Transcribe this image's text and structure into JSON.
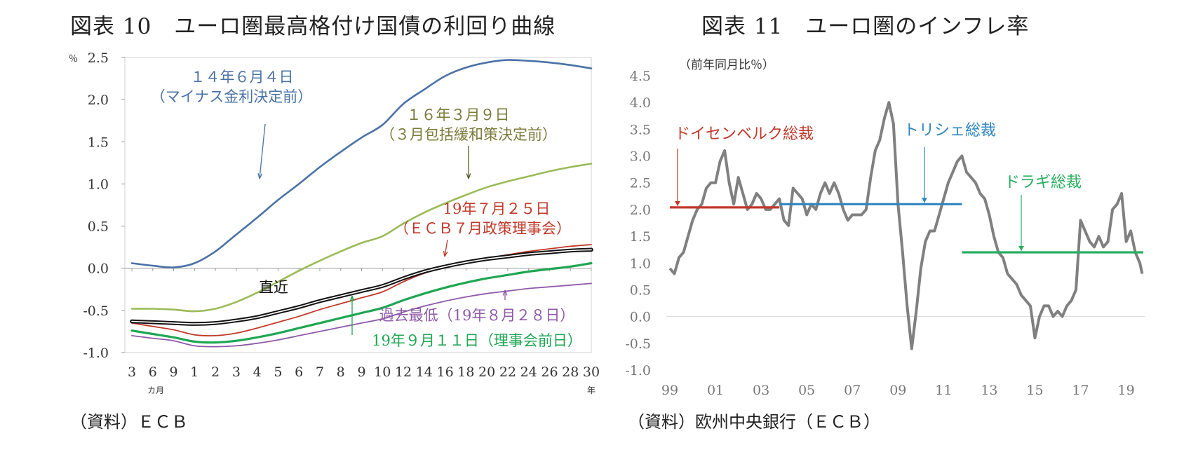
{
  "chart_data": [
    {
      "type": "line",
      "title": "図表 10　ユーロ圏最高格付け国債の利回り曲線",
      "ylabel": "％",
      "ylim": [
        -1.0,
        2.5
      ],
      "yticks": [
        {
          "v": 2.5,
          "label": "2.5"
        },
        {
          "v": 2.0,
          "label": "2.0"
        },
        {
          "v": 1.5,
          "label": "1.5"
        },
        {
          "v": 1.0,
          "label": "1.0"
        },
        {
          "v": 0.5,
          "label": "0.5"
        },
        {
          "v": 0.0,
          "label": "0.0"
        },
        {
          "v": -0.5,
          "label": "-0.5"
        },
        {
          "v": -1.0,
          "label": "-1.0"
        }
      ],
      "x_ticks": [
        "3",
        "6",
        "9",
        "1",
        "2",
        "3",
        "4",
        "5",
        "6",
        "7",
        "8",
        "9",
        "10",
        "12",
        "14",
        "16",
        "18",
        "20",
        "22",
        "24",
        "26",
        "28",
        "30"
      ],
      "x_unit_month": "カ月",
      "x_unit_year": "年",
      "series": [
        {
          "name": "14年6月4日",
          "color": "#4a72a6",
          "width": 2.6,
          "values": [
            0.06,
            0.03,
            0.01,
            0.06,
            0.2,
            0.4,
            0.6,
            0.81,
            1.0,
            1.2,
            1.38,
            1.55,
            1.7,
            1.95,
            2.12,
            2.28,
            2.38,
            2.44,
            2.47,
            2.46,
            2.44,
            2.41,
            2.37
          ]
        },
        {
          "name": "16年3月9日",
          "color": "#9bbb59",
          "width": 2.6,
          "values": [
            -0.48,
            -0.48,
            -0.49,
            -0.51,
            -0.48,
            -0.4,
            -0.29,
            -0.16,
            -0.03,
            0.09,
            0.2,
            0.3,
            0.38,
            0.53,
            0.66,
            0.77,
            0.87,
            0.96,
            1.03,
            1.09,
            1.15,
            1.2,
            1.24
          ]
        },
        {
          "name": "19年7月25日",
          "color": "#c0392b",
          "width": 1.8,
          "values": [
            -0.65,
            -0.69,
            -0.73,
            -0.79,
            -0.8,
            -0.77,
            -0.71,
            -0.64,
            -0.57,
            -0.49,
            -0.42,
            -0.35,
            -0.28,
            -0.16,
            -0.06,
            0.01,
            0.07,
            0.12,
            0.16,
            0.2,
            0.23,
            0.26,
            0.28
          ]
        },
        {
          "name": "直近",
          "color": "#111111",
          "width": 2.2,
          "outline": true,
          "values": [
            -0.63,
            -0.64,
            -0.65,
            -0.66,
            -0.65,
            -0.62,
            -0.58,
            -0.52,
            -0.46,
            -0.39,
            -0.33,
            -0.27,
            -0.21,
            -0.12,
            -0.04,
            0.02,
            0.07,
            0.11,
            0.14,
            0.17,
            0.19,
            0.21,
            0.22
          ]
        },
        {
          "name": "19年9月11日（理事会前日）",
          "color": "#1fa653",
          "width": 3.2,
          "values": [
            -0.74,
            -0.78,
            -0.82,
            -0.87,
            -0.88,
            -0.86,
            -0.82,
            -0.77,
            -0.71,
            -0.65,
            -0.59,
            -0.53,
            -0.47,
            -0.38,
            -0.3,
            -0.23,
            -0.17,
            -0.12,
            -0.08,
            -0.04,
            -0.01,
            0.02,
            0.06
          ]
        },
        {
          "name": "過去最低（19年8月28日）",
          "color": "#8e5aa8",
          "width": 1.8,
          "values": [
            -0.8,
            -0.83,
            -0.86,
            -0.92,
            -0.93,
            -0.92,
            -0.89,
            -0.85,
            -0.8,
            -0.75,
            -0.7,
            -0.65,
            -0.6,
            -0.52,
            -0.45,
            -0.39,
            -0.34,
            -0.3,
            -0.27,
            -0.24,
            -0.22,
            -0.2,
            -0.18
          ]
        }
      ],
      "annotations": [
        {
          "text": "１４年６月４日",
          "color": "#4a72a6"
        },
        {
          "text": "（マイナス金利決定前）",
          "color": "#4a72a6"
        },
        {
          "text": "１６年３月９日",
          "color": "#7a7a3a"
        },
        {
          "text": "（３月包括緩和策決定前）",
          "color": "#7a7a3a"
        },
        {
          "text": "19年７月２５日",
          "color": "#c0392b"
        },
        {
          "text": "（ＥＣＢ７月政策理事会）",
          "color": "#c0392b"
        },
        {
          "text": "直近",
          "color": "#111111"
        },
        {
          "text": "過去最低（19年８月２８日）",
          "color": "#8e5aa8"
        },
        {
          "text": "19年９月１１日（理事会前日）",
          "color": "#1fa653"
        }
      ]
    },
    {
      "type": "line",
      "title": "図表 11　ユーロ圏のインフレ率",
      "ylabel": "（前年同月比％）",
      "ylim": [
        -1.0,
        4.5
      ],
      "yticks": [
        {
          "v": 4.5,
          "label": "4.5"
        },
        {
          "v": 4.0,
          "label": "4.0"
        },
        {
          "v": 3.5,
          "label": "3.5"
        },
        {
          "v": 3.0,
          "label": "3.0"
        },
        {
          "v": 2.5,
          "label": "2.5"
        },
        {
          "v": 2.0,
          "label": "2.0"
        },
        {
          "v": 1.5,
          "label": "1.5"
        },
        {
          "v": 1.0,
          "label": "1.0"
        },
        {
          "v": 0.5,
          "label": "0.5"
        },
        {
          "v": 0.0,
          "label": "0.0"
        },
        {
          "v": -0.5,
          "label": "-0.5"
        },
        {
          "v": -1.0,
          "label": "-1.0"
        }
      ],
      "x_range": [
        1999,
        2019.75
      ],
      "x_ticks": [
        {
          "v": 1999,
          "label": "99"
        },
        {
          "v": 2001,
          "label": "01"
        },
        {
          "v": 2003,
          "label": "03"
        },
        {
          "v": 2005,
          "label": "05"
        },
        {
          "v": 2007,
          "label": "07"
        },
        {
          "v": 2009,
          "label": "09"
        },
        {
          "v": 2011,
          "label": "11"
        },
        {
          "v": 2013,
          "label": "13"
        },
        {
          "v": 2015,
          "label": "15"
        },
        {
          "v": 2017,
          "label": "17"
        },
        {
          "v": 2019,
          "label": "19"
        }
      ],
      "series": [
        {
          "name": "インフレ率",
          "color": "#808080",
          "width": 4,
          "x": [
            1999.0,
            1999.2,
            1999.4,
            1999.6,
            1999.8,
            2000.0,
            2000.2,
            2000.4,
            2000.6,
            2000.8,
            2001.0,
            2001.2,
            2001.4,
            2001.6,
            2001.8,
            2002.0,
            2002.2,
            2002.4,
            2002.6,
            2002.8,
            2003.0,
            2003.2,
            2003.4,
            2003.6,
            2003.8,
            2004.0,
            2004.2,
            2004.4,
            2004.6,
            2004.8,
            2005.0,
            2005.2,
            2005.4,
            2005.6,
            2005.8,
            2006.0,
            2006.2,
            2006.4,
            2006.6,
            2006.8,
            2007.0,
            2007.2,
            2007.4,
            2007.6,
            2007.8,
            2008.0,
            2008.2,
            2008.4,
            2008.6,
            2008.8,
            2009.0,
            2009.2,
            2009.4,
            2009.6,
            2009.8,
            2010.0,
            2010.2,
            2010.4,
            2010.6,
            2010.8,
            2011.0,
            2011.2,
            2011.4,
            2011.6,
            2011.8,
            2012.0,
            2012.2,
            2012.4,
            2012.6,
            2012.8,
            2013.0,
            2013.2,
            2013.4,
            2013.6,
            2013.8,
            2014.0,
            2014.2,
            2014.4,
            2014.6,
            2014.8,
            2015.0,
            2015.2,
            2015.4,
            2015.6,
            2015.8,
            2016.0,
            2016.2,
            2016.4,
            2016.6,
            2016.8,
            2017.0,
            2017.2,
            2017.4,
            2017.6,
            2017.8,
            2018.0,
            2018.2,
            2018.4,
            2018.6,
            2018.8,
            2019.0,
            2019.2,
            2019.4,
            2019.6,
            2019.7
          ],
          "values": [
            0.9,
            0.8,
            1.1,
            1.2,
            1.5,
            1.8,
            2.0,
            2.1,
            2.4,
            2.5,
            2.5,
            2.9,
            3.1,
            2.5,
            2.1,
            2.6,
            2.3,
            2.0,
            2.1,
            2.3,
            2.2,
            2.0,
            2.0,
            2.1,
            2.2,
            1.8,
            1.7,
            2.4,
            2.3,
            2.2,
            1.9,
            2.1,
            2.0,
            2.3,
            2.5,
            2.3,
            2.5,
            2.3,
            2.0,
            1.8,
            1.9,
            1.9,
            1.9,
            2.0,
            2.6,
            3.1,
            3.3,
            3.7,
            4.0,
            3.6,
            2.1,
            1.2,
            0.2,
            -0.6,
            0.1,
            0.9,
            1.4,
            1.6,
            1.6,
            1.9,
            2.2,
            2.5,
            2.7,
            2.9,
            3.0,
            2.7,
            2.6,
            2.5,
            2.3,
            2.2,
            1.9,
            1.5,
            1.2,
            1.1,
            0.8,
            0.7,
            0.6,
            0.4,
            0.3,
            0.2,
            -0.4,
            0.0,
            0.2,
            0.2,
            0.0,
            0.1,
            0.0,
            0.2,
            0.3,
            0.5,
            1.8,
            1.6,
            1.4,
            1.3,
            1.5,
            1.3,
            1.4,
            2.0,
            2.1,
            2.3,
            1.4,
            1.6,
            1.2,
            1.0,
            0.8
          ]
        },
        {
          "name": "ドイセンベルク総裁",
          "color": "#c0392b",
          "width": 3.2,
          "x": [
            1999.0,
            2003.8
          ],
          "values": [
            2.04,
            2.04
          ]
        },
        {
          "name": "トリシェ総裁",
          "color": "#2e86c1",
          "width": 3.2,
          "x": [
            2003.8,
            2011.8
          ],
          "values": [
            2.1,
            2.1
          ]
        },
        {
          "name": "ドラギ総裁",
          "color": "#27ae60",
          "width": 3.2,
          "x": [
            2011.8,
            2019.75
          ],
          "values": [
            1.2,
            1.2
          ]
        }
      ],
      "annotations": [
        {
          "text": "ドイセンベルク総裁",
          "color": "#c0392b"
        },
        {
          "text": "トリシェ総裁",
          "color": "#2e86c1"
        },
        {
          "text": "ドラギ総裁",
          "color": "#27ae60"
        }
      ]
    }
  ],
  "sources": {
    "left": "（資料）ＥＣＢ",
    "right": "（資料）欧州中央銀行（ＥＣＢ）"
  }
}
